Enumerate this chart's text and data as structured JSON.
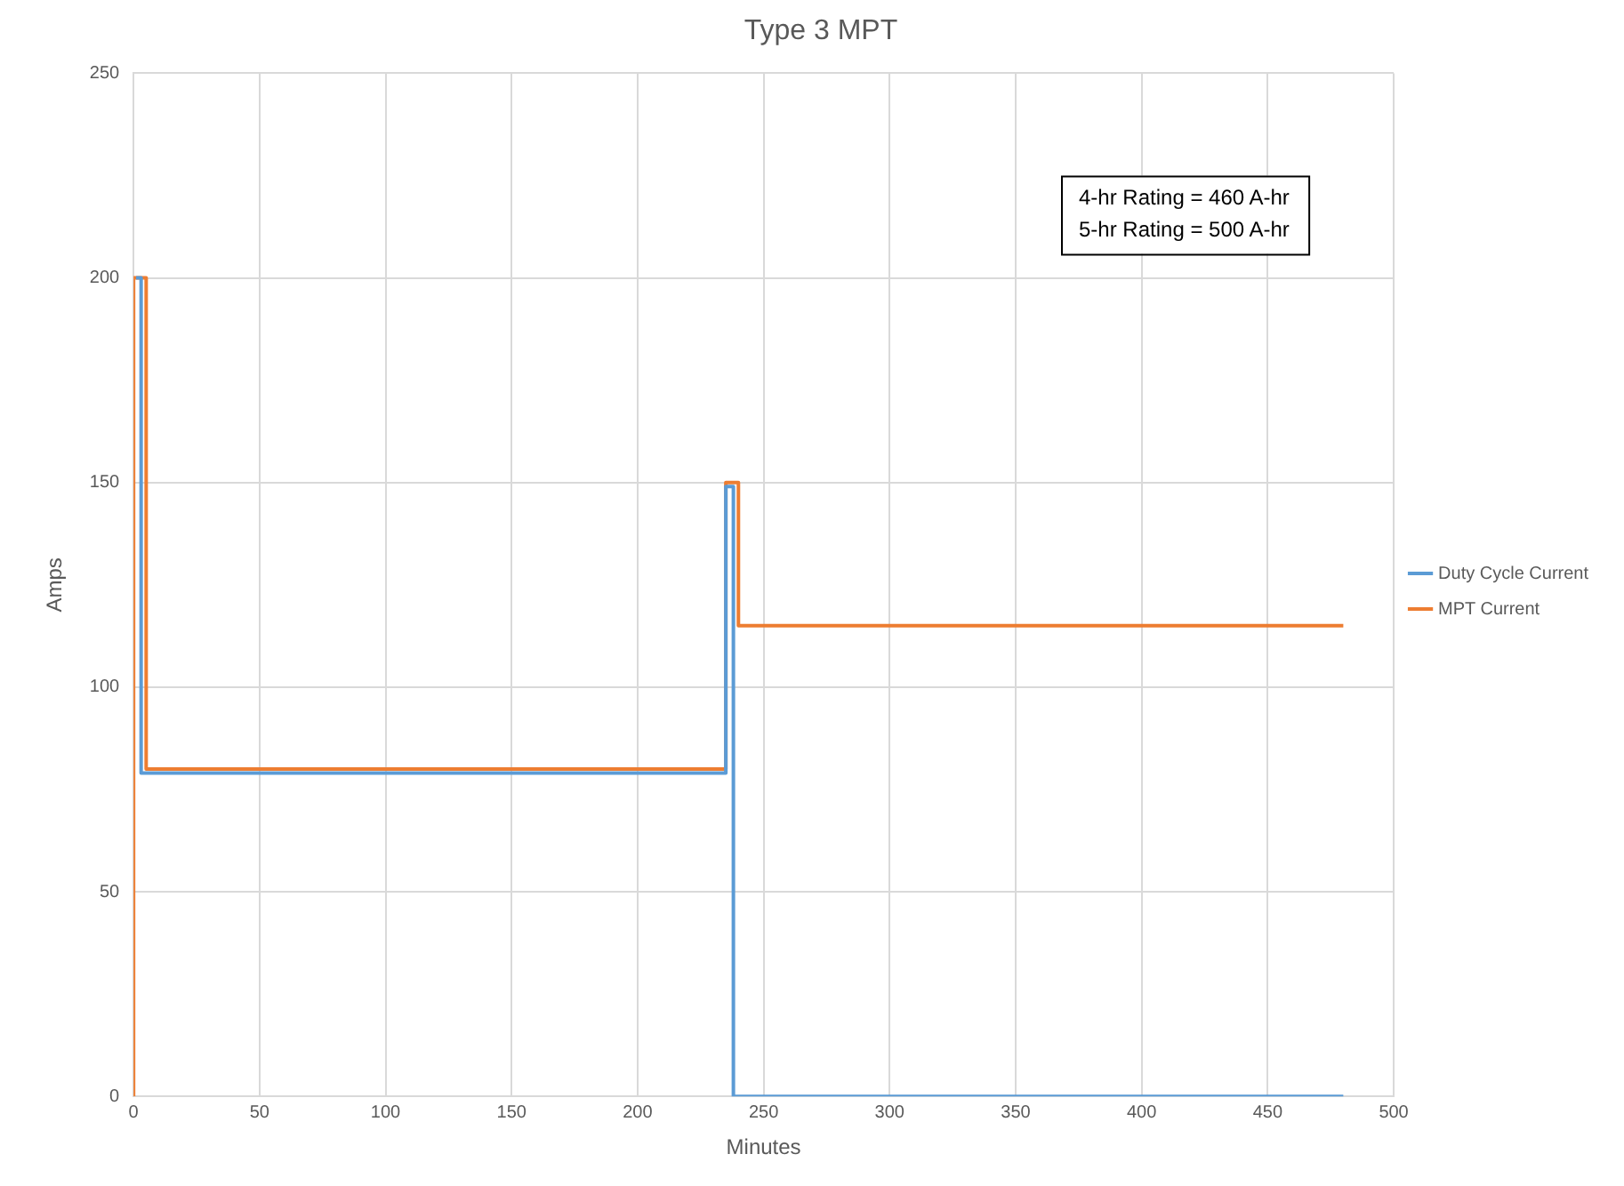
{
  "chart_data": {
    "type": "line",
    "title": "Type 3 MPT",
    "xlabel": "Minutes",
    "ylabel": "Amps",
    "xlim": [
      0,
      500
    ],
    "xticks": [
      0,
      50,
      100,
      150,
      200,
      250,
      300,
      350,
      400,
      450,
      500
    ],
    "ylim": [
      0,
      250
    ],
    "yticks": [
      0,
      50,
      100,
      150,
      200,
      250
    ],
    "grid": true,
    "legend": "right",
    "marker": "none",
    "line_style": "solid",
    "annotations": [
      "4-hr Rating = 460 A-hr",
      "5-hr Rating = 500 A-hr"
    ],
    "series": [
      {
        "name": "Duty Cycle Current",
        "color": "#5b9bd5",
        "x": [
          1,
          3,
          3,
          235,
          235,
          238,
          238,
          480
        ],
        "values": [
          200,
          200,
          79,
          79,
          149,
          149,
          0,
          0
        ]
      },
      {
        "name": "MPT Current",
        "color": "#ed7d31",
        "x": [
          0,
          0,
          5,
          5,
          235,
          235,
          240,
          240,
          480
        ],
        "values": [
          0,
          200,
          200,
          80,
          80,
          150,
          150,
          115,
          115
        ]
      }
    ]
  }
}
